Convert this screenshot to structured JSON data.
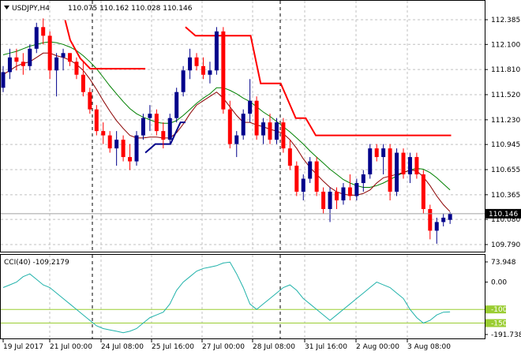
{
  "header": {
    "symbol": "USDJPY,H4",
    "ohlc": "110.075 110.162 110.028 110.146"
  },
  "price_axis": {
    "ticks": [
      "112.385",
      "112.100",
      "111.810",
      "111.520",
      "111.230",
      "110.945",
      "110.655",
      "110.365",
      "110.080",
      "109.790"
    ],
    "current_price": "110.146"
  },
  "cci_panel": {
    "label": "CCI(40) -109.2179",
    "ticks": [
      "73.948",
      "0.00",
      "-191.7381"
    ],
    "level_labels": [
      "-100",
      "-150"
    ]
  },
  "time_axis": {
    "labels": [
      "19 Jul 2017",
      "21 Jul 00:00",
      "24 Jul 08:00",
      "25 Jul 16:00",
      "27 Jul 00:00",
      "28 Jul 08:00",
      "31 Jul 16:00",
      "2 Aug 00:00",
      "3 Aug 08:00"
    ]
  },
  "colors": {
    "bull": "#00008b",
    "bear": "#ff0000",
    "ma_fast": "#8b0000",
    "ma_slow": "#008000",
    "cci": "#20b2aa",
    "level": "#9acd32",
    "grid": "#c0c0c0",
    "price_line": "#a0a0a0"
  },
  "chart_data": {
    "type": "candlestick",
    "price_range": [
      109.79,
      112.385
    ],
    "cci_range": [
      -191.7381,
      73.948
    ],
    "cci_levels": [
      -100,
      -150
    ],
    "candles": [
      [
        111.6,
        111.85,
        111.55,
        111.78
      ],
      [
        111.78,
        112.05,
        111.7,
        111.95
      ],
      [
        111.95,
        112.05,
        111.8,
        111.9
      ],
      [
        111.9,
        112.0,
        111.75,
        111.85
      ],
      [
        111.85,
        112.1,
        111.8,
        112.05
      ],
      [
        112.05,
        112.35,
        112.0,
        112.3
      ],
      [
        112.3,
        112.4,
        112.1,
        112.2
      ],
      [
        112.2,
        112.25,
        111.7,
        111.8
      ],
      [
        111.8,
        112.0,
        111.5,
        111.95
      ],
      [
        111.95,
        112.05,
        111.8,
        112.0
      ],
      [
        112.0,
        112.0,
        111.85,
        111.9
      ],
      [
        111.9,
        111.95,
        111.7,
        111.75
      ],
      [
        111.75,
        111.9,
        111.5,
        111.55
      ],
      [
        111.55,
        111.6,
        111.3,
        111.35
      ],
      [
        111.35,
        111.4,
        111.05,
        111.1
      ],
      [
        111.1,
        111.2,
        110.95,
        111.05
      ],
      [
        111.05,
        111.1,
        110.85,
        110.9
      ],
      [
        110.9,
        111.1,
        110.7,
        111.0
      ],
      [
        111.0,
        111.05,
        110.75,
        110.8
      ],
      [
        110.8,
        110.95,
        110.65,
        110.75
      ],
      [
        110.75,
        111.1,
        110.7,
        111.05
      ],
      [
        111.05,
        111.3,
        111.0,
        111.25
      ],
      [
        111.25,
        111.4,
        111.1,
        111.3
      ],
      [
        111.3,
        111.35,
        111.05,
        111.1
      ],
      [
        111.1,
        111.2,
        110.9,
        111.0
      ],
      [
        111.0,
        111.3,
        110.95,
        111.25
      ],
      [
        111.25,
        111.6,
        111.2,
        111.55
      ],
      [
        111.55,
        111.85,
        111.5,
        111.8
      ],
      [
        111.8,
        112.05,
        111.7,
        111.95
      ],
      [
        111.95,
        112.0,
        111.8,
        111.85
      ],
      [
        111.85,
        111.95,
        111.7,
        111.75
      ],
      [
        111.75,
        111.9,
        111.65,
        111.8
      ],
      [
        111.8,
        112.3,
        111.75,
        112.25
      ],
      [
        112.25,
        112.3,
        111.3,
        111.35
      ],
      [
        111.35,
        111.45,
        110.9,
        110.95
      ],
      [
        110.95,
        111.1,
        110.8,
        111.05
      ],
      [
        111.05,
        111.35,
        111.0,
        111.3
      ],
      [
        111.3,
        111.7,
        111.2,
        111.45
      ],
      [
        111.45,
        111.5,
        111.0,
        111.05
      ],
      [
        111.05,
        111.25,
        110.95,
        111.2
      ],
      [
        111.2,
        111.3,
        110.95,
        111.0
      ],
      [
        111.0,
        111.25,
        110.95,
        111.2
      ],
      [
        111.2,
        111.25,
        110.85,
        110.9
      ],
      [
        110.9,
        111.0,
        110.65,
        110.7
      ],
      [
        110.7,
        110.75,
        110.35,
        110.4
      ],
      [
        110.4,
        110.6,
        110.3,
        110.55
      ],
      [
        110.55,
        110.8,
        110.5,
        110.75
      ],
      [
        110.75,
        110.8,
        110.35,
        110.4
      ],
      [
        110.4,
        110.45,
        110.15,
        110.2
      ],
      [
        110.2,
        110.45,
        110.05,
        110.4
      ],
      [
        110.4,
        110.45,
        110.2,
        110.3
      ],
      [
        110.3,
        110.5,
        110.25,
        110.45
      ],
      [
        110.45,
        110.6,
        110.3,
        110.35
      ],
      [
        110.35,
        110.55,
        110.3,
        110.5
      ],
      [
        110.5,
        110.65,
        110.4,
        110.6
      ],
      [
        110.6,
        110.95,
        110.55,
        110.9
      ],
      [
        110.9,
        110.95,
        110.75,
        110.8
      ],
      [
        110.8,
        110.95,
        110.6,
        110.9
      ],
      [
        110.9,
        110.95,
        110.3,
        110.4
      ],
      [
        110.4,
        110.9,
        110.35,
        110.85
      ],
      [
        110.85,
        110.9,
        110.55,
        110.6
      ],
      [
        110.6,
        110.85,
        110.5,
        110.8
      ],
      [
        110.8,
        110.85,
        110.55,
        110.6
      ],
      [
        110.6,
        110.65,
        110.15,
        110.2
      ],
      [
        110.2,
        110.25,
        109.85,
        109.95
      ],
      [
        109.95,
        110.1,
        109.8,
        110.05
      ],
      [
        110.05,
        110.15,
        110.0,
        110.1
      ],
      [
        110.075,
        110.162,
        110.028,
        110.146
      ]
    ],
    "ma_fast": [
      111.75,
      111.8,
      111.85,
      111.88,
      111.9,
      111.95,
      112.0,
      112.0,
      111.97,
      111.95,
      111.92,
      111.87,
      111.8,
      111.7,
      111.58,
      111.45,
      111.33,
      111.22,
      111.13,
      111.05,
      111.02,
      111.02,
      111.03,
      111.03,
      111.02,
      111.02,
      111.08,
      111.18,
      111.3,
      111.4,
      111.45,
      111.5,
      111.55,
      111.48,
      111.38,
      111.28,
      111.2,
      111.2,
      111.17,
      111.15,
      111.12,
      111.1,
      111.07,
      111.0,
      110.9,
      110.78,
      110.68,
      110.6,
      110.52,
      110.45,
      110.4,
      110.37,
      110.36,
      110.36,
      110.38,
      110.42,
      110.5,
      110.56,
      110.58,
      110.6,
      110.62,
      110.65,
      110.64,
      110.57,
      110.47,
      110.35,
      110.25,
      110.17
    ],
    "ma_slow": [
      111.98,
      112.0,
      112.02,
      112.05,
      112.08,
      112.1,
      112.12,
      112.13,
      112.12,
      112.1,
      112.07,
      112.03,
      111.97,
      111.9,
      111.82,
      111.72,
      111.62,
      111.53,
      111.44,
      111.36,
      111.3,
      111.26,
      111.23,
      111.2,
      111.19,
      111.19,
      111.22,
      111.28,
      111.35,
      111.42,
      111.48,
      111.53,
      111.6,
      111.6,
      111.57,
      111.53,
      111.48,
      111.44,
      111.38,
      111.32,
      111.27,
      111.21,
      111.15,
      111.09,
      111.02,
      110.95,
      110.87,
      110.8,
      110.73,
      110.66,
      110.6,
      110.54,
      110.5,
      110.47,
      110.45,
      110.45,
      110.47,
      110.5,
      110.54,
      110.58,
      110.62,
      110.65,
      110.67,
      110.66,
      110.62,
      110.56,
      110.49,
      110.42
    ],
    "stop_segments": [
      [
        [
          13,
          112.38
        ],
        [
          14,
          112.15
        ],
        [
          16,
          111.94
        ],
        [
          18,
          111.82
        ],
        [
          19,
          111.82
        ],
        [
          29,
          111.82
        ]
      ],
      [
        [
          29,
          110.85
        ],
        [
          31,
          110.95
        ],
        [
          34,
          110.95
        ],
        [
          36,
          111.2
        ],
        [
          37,
          111.2
        ]
      ],
      [
        [
          37,
          112.3
        ],
        [
          39,
          112.2
        ],
        [
          50,
          112.2
        ],
        [
          52,
          111.65
        ],
        [
          56,
          111.65
        ],
        [
          59,
          111.25
        ],
        [
          61,
          111.25
        ],
        [
          63,
          111.05
        ],
        [
          90,
          111.05
        ]
      ]
    ],
    "cci": [
      -20,
      -10,
      0,
      20,
      30,
      10,
      -10,
      -20,
      -40,
      -60,
      -80,
      -100,
      -120,
      -140,
      -160,
      -170,
      -175,
      -180,
      -185,
      -180,
      -170,
      -150,
      -130,
      -120,
      -110,
      -80,
      -30,
      0,
      20,
      40,
      50,
      55,
      60,
      70,
      73,
      30,
      -20,
      -80,
      -100,
      -80,
      -60,
      -40,
      -20,
      -10,
      -30,
      -60,
      -80,
      -100,
      -120,
      -140,
      -120,
      -100,
      -80,
      -60,
      -40,
      -20,
      0,
      -10,
      -20,
      -40,
      -60,
      -100,
      -130,
      -150,
      -140,
      -120,
      -110,
      -109
    ]
  }
}
